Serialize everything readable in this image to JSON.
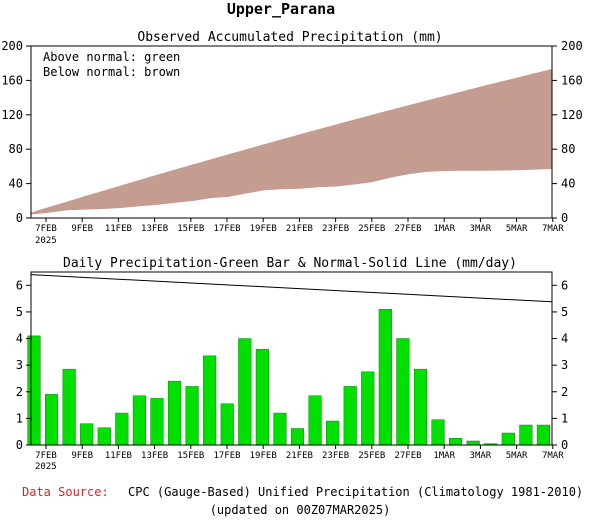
{
  "region_title": "Upper_Parana",
  "source_line": {
    "label": "Data Source:",
    "text": "CPC (Gauge-Based) Unified Precipitation (Climatology 1981-2010)"
  },
  "updated_line": "(updated on 00Z07MAR2025)",
  "colors": {
    "below_normal_fill": "#c49c90",
    "observed_fill": "#ffffff",
    "bar_fill": "#00e000",
    "bar_stroke": "#008800",
    "normal_line": "#000000",
    "source_label": "#e02020",
    "axis": "#000000"
  },
  "chart_data": [
    {
      "type": "area",
      "title": "Observed Accumulated Precipitation (mm)",
      "annotations": [
        "Above normal: green",
        "Below normal: brown"
      ],
      "x_tick_labels": [
        "7FEB",
        "9FEB",
        "11FEB",
        "13FEB",
        "15FEB",
        "17FEB",
        "19FEB",
        "21FEB",
        "23FEB",
        "25FEB",
        "27FEB",
        "1MAR",
        "3MAR",
        "5MAR",
        "7MAR"
      ],
      "x_year_label": "2025",
      "ylim": [
        0,
        200
      ],
      "y_ticks": [
        0,
        40,
        80,
        120,
        160,
        200
      ],
      "series": [
        {
          "name": "Observed",
          "values": [
            4.1,
            6.1,
            9.0,
            9.8,
            10.5,
            11.7,
            13.5,
            15.3,
            17.6,
            19.8,
            23.1,
            24.6,
            28.6,
            32.2,
            33.4,
            34.0,
            35.8,
            36.7,
            38.9,
            41.7,
            46.8,
            50.8,
            53.6,
            54.6,
            54.9,
            55.0,
            55.1,
            55.5,
            56.2,
            57.0
          ]
        },
        {
          "name": "Normal",
          "values": [
            6.4,
            12.8,
            19.1,
            25.4,
            31.6,
            37.8,
            44.0,
            50.1,
            56.2,
            62.2,
            68.2,
            74.1,
            80.0,
            85.9,
            91.7,
            97.5,
            103.2,
            108.9,
            114.5,
            120.1,
            125.6,
            131.1,
            136.5,
            141.9,
            147.3,
            152.6,
            157.8,
            163.0,
            168.2,
            173.3
          ]
        }
      ]
    },
    {
      "type": "bar",
      "title": "Daily Precipitation-Green Bar & Normal-Solid Line (mm/day)",
      "x_tick_labels": [
        "7FEB",
        "9FEB",
        "11FEB",
        "13FEB",
        "15FEB",
        "17FEB",
        "19FEB",
        "21FEB",
        "23FEB",
        "25FEB",
        "27FEB",
        "1MAR",
        "3MAR",
        "5MAR",
        "7MAR"
      ],
      "x_year_label": "2025",
      "ylim": [
        0,
        6.5
      ],
      "y_ticks": [
        0,
        1,
        2,
        3,
        4,
        5,
        6
      ],
      "series": [
        {
          "name": "Daily",
          "values": [
            4.1,
            1.9,
            2.85,
            0.8,
            0.65,
            1.2,
            1.85,
            1.75,
            2.4,
            2.2,
            3.35,
            1.55,
            4.0,
            3.6,
            1.2,
            0.62,
            1.85,
            0.9,
            2.2,
            2.75,
            5.1,
            4.0,
            2.85,
            0.95,
            0.25,
            0.15,
            0.05,
            0.45,
            0.75,
            0.75
          ]
        },
        {
          "name": "Normal",
          "start": 6.4,
          "end": 5.38
        }
      ]
    }
  ]
}
